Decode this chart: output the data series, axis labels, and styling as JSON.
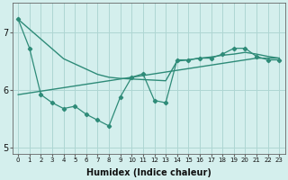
{
  "x": [
    0,
    1,
    2,
    3,
    4,
    5,
    6,
    7,
    8,
    9,
    10,
    11,
    12,
    13,
    14,
    15,
    16,
    17,
    18,
    19,
    20,
    21,
    22,
    23
  ],
  "line_data": [
    7.22,
    6.72,
    5.92,
    5.78,
    5.68,
    5.72,
    5.58,
    5.48,
    5.38,
    5.88,
    6.22,
    6.28,
    5.82,
    5.78,
    6.52,
    6.52,
    6.55,
    6.55,
    6.62,
    6.72,
    6.72,
    6.58,
    6.52,
    6.52
  ],
  "line_straight_desc": [
    7.22,
    7.05,
    6.88,
    6.71,
    6.54,
    6.45,
    6.36,
    6.27,
    6.22,
    6.2,
    6.19,
    6.18,
    6.17,
    6.16,
    6.5,
    6.52,
    6.55,
    6.57,
    6.6,
    6.62,
    6.65,
    6.62,
    6.58,
    6.55
  ],
  "line_straight_asc": [
    5.92,
    5.95,
    5.98,
    6.01,
    6.04,
    6.07,
    6.1,
    6.13,
    6.16,
    6.19,
    6.22,
    6.25,
    6.28,
    6.31,
    6.34,
    6.37,
    6.4,
    6.43,
    6.46,
    6.49,
    6.52,
    6.55,
    6.55,
    6.55
  ],
  "color": "#2e8b78",
  "bg_color": "#d4efed",
  "grid_color": "#aed6d3",
  "xlabel": "Humidex (Indice chaleur)",
  "ylim": [
    4.9,
    7.5
  ],
  "xlim": [
    -0.5,
    23.5
  ],
  "yticks": [
    5,
    6,
    7
  ],
  "xticks": [
    0,
    1,
    2,
    3,
    4,
    5,
    6,
    7,
    8,
    9,
    10,
    11,
    12,
    13,
    14,
    15,
    16,
    17,
    18,
    19,
    20,
    21,
    22,
    23
  ]
}
